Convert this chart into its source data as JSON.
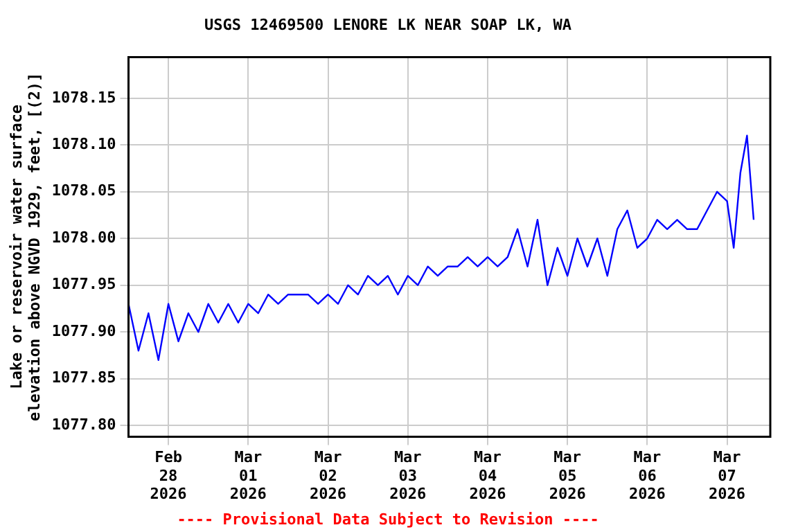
{
  "chart_data": {
    "type": "line",
    "title": "USGS 12469500 LENORE LK NEAR SOAP LK, WA",
    "ylabel": "Lake or reservoir water surface elevation above NGVD 1929, feet, [(2)]",
    "annotations": [
      "---- Provisional Data Subject to Revision ----"
    ],
    "x": [
      "2026-02-27T12:00",
      "2026-02-27T15:00",
      "2026-02-27T18:00",
      "2026-02-27T21:00",
      "2026-02-28T00:00",
      "2026-02-28T03:00",
      "2026-02-28T06:00",
      "2026-02-28T09:00",
      "2026-02-28T12:00",
      "2026-02-28T15:00",
      "2026-02-28T18:00",
      "2026-02-28T21:00",
      "2026-03-01T00:00",
      "2026-03-01T03:00",
      "2026-03-01T06:00",
      "2026-03-01T09:00",
      "2026-03-01T12:00",
      "2026-03-01T15:00",
      "2026-03-01T18:00",
      "2026-03-01T21:00",
      "2026-03-02T00:00",
      "2026-03-02T03:00",
      "2026-03-02T06:00",
      "2026-03-02T09:00",
      "2026-03-02T12:00",
      "2026-03-02T15:00",
      "2026-03-02T18:00",
      "2026-03-02T21:00",
      "2026-03-03T00:00",
      "2026-03-03T03:00",
      "2026-03-03T06:00",
      "2026-03-03T09:00",
      "2026-03-03T12:00",
      "2026-03-03T15:00",
      "2026-03-03T18:00",
      "2026-03-03T21:00",
      "2026-03-04T00:00",
      "2026-03-04T03:00",
      "2026-03-04T06:00",
      "2026-03-04T09:00",
      "2026-03-04T12:00",
      "2026-03-04T15:00",
      "2026-03-04T18:00",
      "2026-03-04T21:00",
      "2026-03-05T00:00",
      "2026-03-05T03:00",
      "2026-03-05T06:00",
      "2026-03-05T09:00",
      "2026-03-05T12:00",
      "2026-03-05T15:00",
      "2026-03-05T18:00",
      "2026-03-05T21:00",
      "2026-03-06T00:00",
      "2026-03-06T03:00",
      "2026-03-06T06:00",
      "2026-03-06T09:00",
      "2026-03-06T12:00",
      "2026-03-06T15:00",
      "2026-03-06T18:00",
      "2026-03-06T21:00",
      "2026-03-07T00:00",
      "2026-03-07T02:00",
      "2026-03-07T04:00",
      "2026-03-07T06:00",
      "2026-03-07T08:00"
    ],
    "series": [
      {
        "color": "#0000ff",
        "values": [
          1077.93,
          1077.88,
          1077.92,
          1077.87,
          1077.93,
          1077.89,
          1077.92,
          1077.9,
          1077.93,
          1077.91,
          1077.93,
          1077.91,
          1077.93,
          1077.92,
          1077.94,
          1077.93,
          1077.94,
          1077.94,
          1077.94,
          1077.93,
          1077.94,
          1077.93,
          1077.95,
          1077.94,
          1077.96,
          1077.95,
          1077.96,
          1077.94,
          1077.96,
          1077.95,
          1077.97,
          1077.96,
          1077.97,
          1077.97,
          1077.98,
          1077.97,
          1077.98,
          1077.97,
          1077.98,
          1078.01,
          1077.97,
          1078.02,
          1077.95,
          1077.99,
          1077.96,
          1078.0,
          1077.97,
          1078.0,
          1077.96,
          1078.01,
          1078.03,
          1077.99,
          1078.0,
          1078.02,
          1078.01,
          1078.02,
          1078.01,
          1078.01,
          1078.03,
          1078.05,
          1078.04,
          1077.99,
          1078.07,
          1078.11,
          1078.02
        ]
      }
    ],
    "xlim": [
      "2026-02-27T12:00",
      "2026-03-07T13:00"
    ],
    "xticks": [
      {
        "value": "2026-02-28",
        "label": "Feb 28 2026"
      },
      {
        "value": "2026-03-01",
        "label": "Mar 01 2026"
      },
      {
        "value": "2026-03-02",
        "label": "Mar 02 2026"
      },
      {
        "value": "2026-03-03",
        "label": "Mar 03 2026"
      },
      {
        "value": "2026-03-04",
        "label": "Mar 04 2026"
      },
      {
        "value": "2026-03-05",
        "label": "Mar 05 2026"
      },
      {
        "value": "2026-03-06",
        "label": "Mar 06 2026"
      },
      {
        "value": "2026-03-07",
        "label": "Mar 07 2026"
      }
    ],
    "ylim": [
      1077.788,
      1078.194
    ],
    "yticks": [
      {
        "value": 1077.8,
        "label": "1077.80"
      },
      {
        "value": 1077.85,
        "label": "1077.85"
      },
      {
        "value": 1077.9,
        "label": "1077.90"
      },
      {
        "value": 1077.95,
        "label": "1077.95"
      },
      {
        "value": 1078.0,
        "label": "1078.00"
      },
      {
        "value": 1078.05,
        "label": "1078.05"
      },
      {
        "value": 1078.1,
        "label": "1078.10"
      },
      {
        "value": 1078.15,
        "label": "1078.15"
      }
    ],
    "grid": true,
    "legend": false,
    "marker": "none",
    "line_style": "solid"
  }
}
